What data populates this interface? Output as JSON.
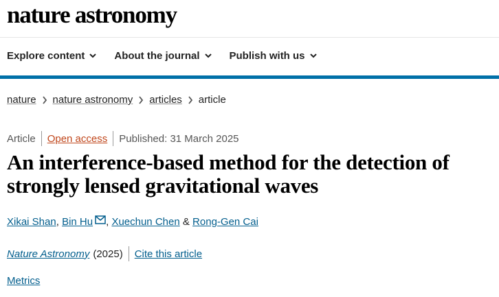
{
  "header": {
    "logo": "nature astronomy"
  },
  "nav": {
    "items": [
      "Explore content",
      "About the journal",
      "Publish with us"
    ]
  },
  "breadcrumb": {
    "items": [
      "nature",
      "nature astronomy",
      "articles",
      "article"
    ]
  },
  "meta": {
    "type": "Article",
    "access": "Open access",
    "published": "Published: 31 March 2025"
  },
  "article": {
    "title": "An interference-based method for the detection of strongly lensed gravitational waves"
  },
  "authors": {
    "names": [
      "Xikai Shan",
      "Bin Hu",
      "Xuechun Chen",
      "Rong-Gen Cai"
    ],
    "separators": [
      ",",
      ",",
      "&"
    ]
  },
  "citation": {
    "journal": "Nature Astronomy",
    "year": "(2025)",
    "cite": "Cite this article"
  },
  "metrics": {
    "link": "Metrics"
  }
}
